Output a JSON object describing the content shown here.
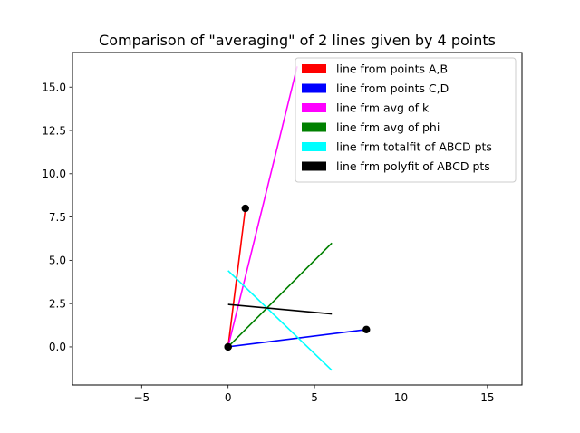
{
  "chart_data": {
    "type": "line",
    "title": "Comparison of \"averaging\" of 2 lines given by 4 points",
    "xlabel": "",
    "ylabel": "",
    "xlim": [
      -9,
      17
    ],
    "ylim": [
      -2.2,
      17.0
    ],
    "x_ticks": [
      -5,
      0,
      5,
      10,
      15
    ],
    "x_tick_labels": [
      "−5",
      "0",
      "5",
      "10",
      "15"
    ],
    "y_ticks": [
      0.0,
      2.5,
      5.0,
      7.5,
      10.0,
      12.5,
      15.0
    ],
    "y_tick_labels": [
      "0.0",
      "2.5",
      "5.0",
      "7.5",
      "10.0",
      "12.5",
      "15.0"
    ],
    "grid": false,
    "legend_position": "top-right",
    "series": [
      {
        "name": "line from points  A,B",
        "color": "#ff0000",
        "x": [
          0,
          1
        ],
        "y": [
          0,
          8
        ]
      },
      {
        "name": "line from points  C,D",
        "color": "#0000ff",
        "x": [
          0,
          8
        ],
        "y": [
          0,
          1
        ]
      },
      {
        "name": "line frm avg of k",
        "color": "#ff00ff",
        "x": [
          0,
          4.0
        ],
        "y": [
          0,
          16.2
        ]
      },
      {
        "name": "line frm avg of phi",
        "color": "#008000",
        "x": [
          0,
          6
        ],
        "y": [
          0,
          6
        ]
      },
      {
        "name": "line frm totalfit of ABCD pts",
        "color": "#00ffff",
        "x": [
          0,
          6
        ],
        "y": [
          4.4,
          -1.35
        ]
      },
      {
        "name": "line frm polyfit of ABCD pts",
        "color": "#000000",
        "x": [
          0,
          6
        ],
        "y": [
          2.45,
          1.9
        ]
      }
    ],
    "points": [
      {
        "x": 0,
        "y": 0
      },
      {
        "x": 1,
        "y": 8
      },
      {
        "x": 0,
        "y": 0
      },
      {
        "x": 8,
        "y": 1
      }
    ]
  }
}
